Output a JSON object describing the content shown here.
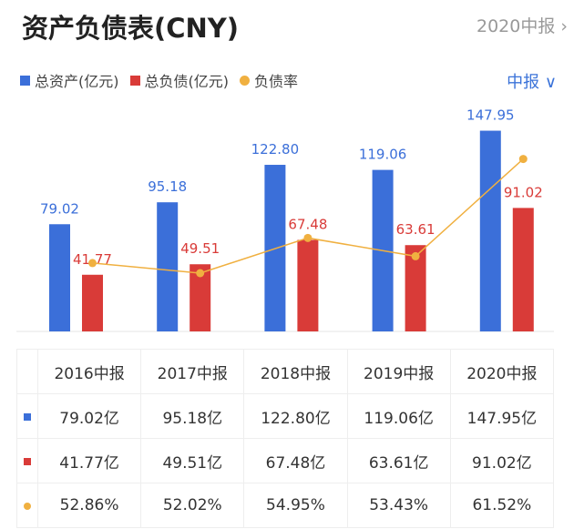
{
  "header": {
    "title": "资产负债表(CNY)",
    "period": "2020中报",
    "period_chevron": "chevron-right-icon",
    "selector": "中报 ∨"
  },
  "legend": [
    {
      "label": "总资产(亿元)",
      "color": "#3b6fd9",
      "shape": "square"
    },
    {
      "label": "总负债(亿元)",
      "color": "#d93b38",
      "shape": "square"
    },
    {
      "label": "负债率",
      "color": "#f0b040",
      "shape": "circle"
    }
  ],
  "chart_data": {
    "type": "bar",
    "categories": [
      "2016中报",
      "2017中报",
      "2018中报",
      "2019中报",
      "2020中报"
    ],
    "series": [
      {
        "name": "总资产(亿元)",
        "type": "bar",
        "color": "#3b6fd9",
        "values": [
          79.02,
          95.18,
          122.8,
          119.06,
          147.95
        ],
        "labels": [
          "79.02",
          "95.18",
          "122.80",
          "119.06",
          "147.95"
        ]
      },
      {
        "name": "总负债(亿元)",
        "type": "bar",
        "color": "#d93b38",
        "values": [
          41.77,
          49.51,
          67.48,
          63.61,
          91.02
        ],
        "labels": [
          "41.77",
          "49.51",
          "67.48",
          "63.61",
          "91.02"
        ]
      },
      {
        "name": "负债率",
        "type": "line",
        "color": "#f0b040",
        "values": [
          52.86,
          52.02,
          54.95,
          53.43,
          61.52
        ]
      }
    ],
    "grid": false
  },
  "table": {
    "headers": [
      "2016中报",
      "2017中报",
      "2018中报",
      "2019中报",
      "2020中报"
    ],
    "rows": [
      {
        "color": "#3b6fd9",
        "shape": "square",
        "cells": [
          "79.02亿",
          "95.18亿",
          "122.80亿",
          "119.06亿",
          "147.95亿"
        ]
      },
      {
        "color": "#d93b38",
        "shape": "square",
        "cells": [
          "41.77亿",
          "49.51亿",
          "67.48亿",
          "63.61亿",
          "91.02亿"
        ]
      },
      {
        "color": "#f0b040",
        "shape": "circle",
        "cells": [
          "52.86%",
          "52.02%",
          "54.95%",
          "53.43%",
          "61.52%"
        ]
      }
    ]
  }
}
